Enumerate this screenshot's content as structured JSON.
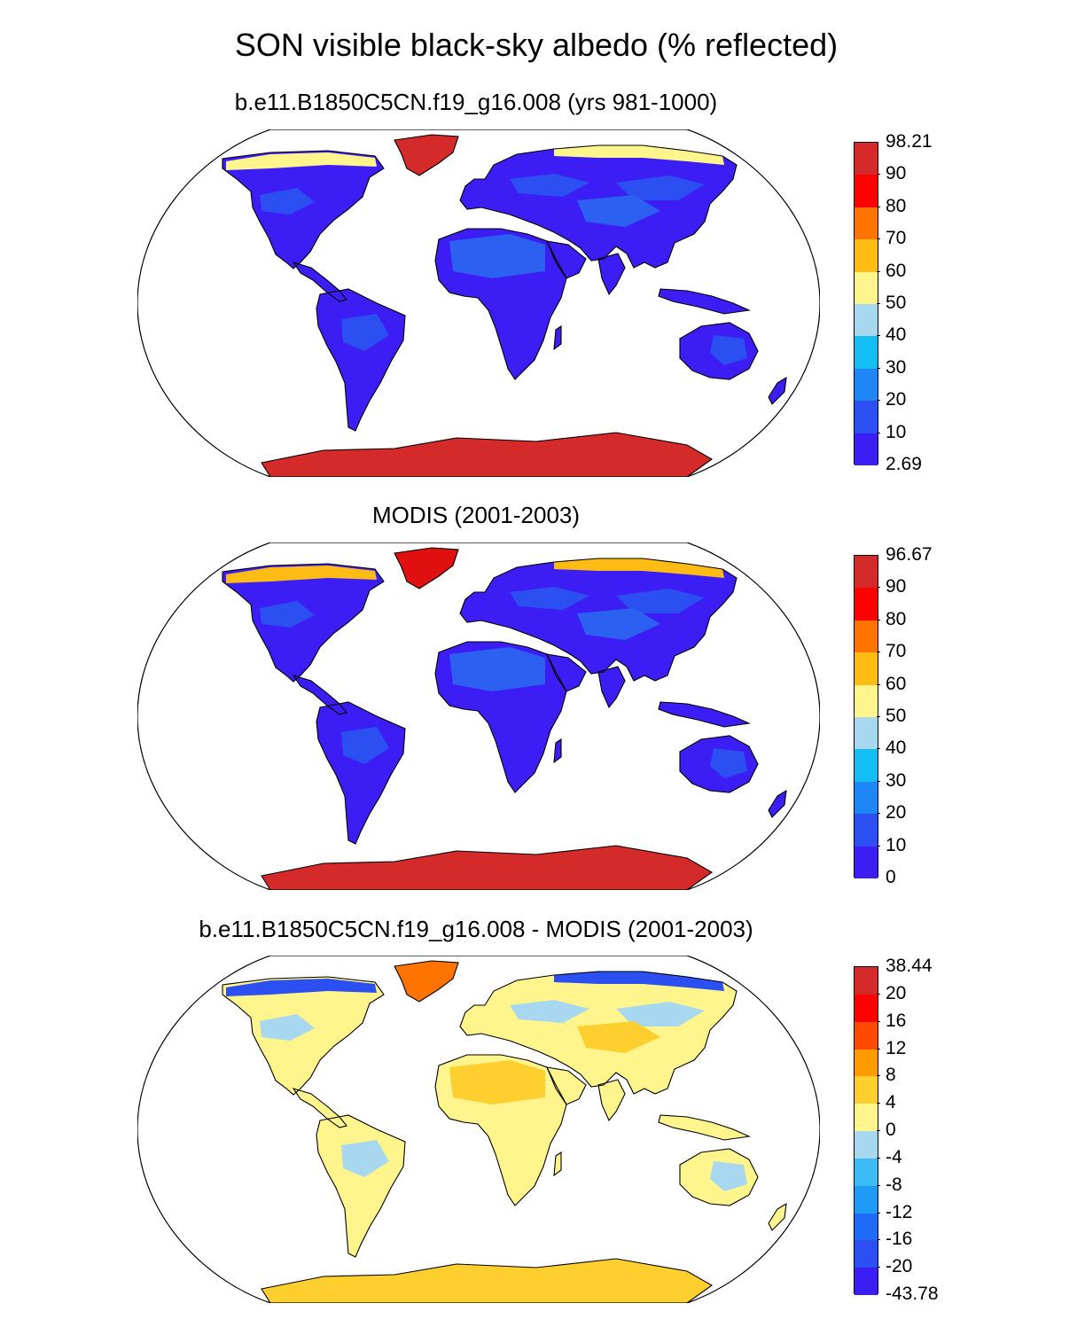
{
  "figure": {
    "title": "SON visible black-sky albedo (% reflected)"
  },
  "panels": [
    {
      "title": "b.e11.B1850C5CN.f19_g16.008 (yrs 981-1000)",
      "colorbar": {
        "labels": [
          "98.21",
          "90",
          "80",
          "70",
          "60",
          "50",
          "40",
          "30",
          "20",
          "10",
          "2.69"
        ],
        "colors": [
          "#d42a2a",
          "#ff0000",
          "#ff7300",
          "#ffbc14",
          "#fff58c",
          "#a8d7f0",
          "#14bef5",
          "#1e86f5",
          "#2b4ff0",
          "#3c1ef5"
        ]
      },
      "fill": {
        "land": "#3c1ef5",
        "land_variant": "#2b4ff0",
        "desert": "#2b60f0",
        "greenland": "#d42a2a",
        "antarctica": "#d42a2a",
        "arctic_rim": "#fff58c"
      }
    },
    {
      "title": "MODIS (2001-2003)",
      "colorbar": {
        "labels": [
          "96.67",
          "90",
          "80",
          "70",
          "60",
          "50",
          "40",
          "30",
          "20",
          "10",
          "0"
        ],
        "colors": [
          "#d42a2a",
          "#ff0000",
          "#ff7300",
          "#ffbc14",
          "#fff58c",
          "#a8d7f0",
          "#14bef5",
          "#1e86f5",
          "#2b4ff0",
          "#3c1ef5"
        ]
      },
      "fill": {
        "land": "#3c1ef5",
        "land_variant": "#2b4ff0",
        "desert": "#2b60f0",
        "greenland": "#e01010",
        "antarctica": "#d42a2a",
        "arctic_rim": "#ffbc14"
      }
    },
    {
      "title": "b.e11.B1850C5CN.f19_g16.008 - MODIS (2001-2003)",
      "colorbar": {
        "labels": [
          "38.44",
          "20",
          "16",
          "12",
          "8",
          "4",
          "0",
          "-4",
          "-8",
          "-12",
          "-16",
          "-20",
          "-43.78"
        ],
        "colors": [
          "#d42a2a",
          "#ff0000",
          "#ff4a00",
          "#ff9a00",
          "#ffcf30",
          "#fff58c",
          "#a8d7f0",
          "#3cbcf5",
          "#1e9cf5",
          "#1e6cf5",
          "#2b4ff0",
          "#3c1ef5"
        ]
      },
      "fill": {
        "land": "#fff58c",
        "land_variant": "#a8d7f0",
        "desert": "#ffcf30",
        "greenland": "#ff7300",
        "antarctica": "#ffcf30",
        "arctic_rim": "#2b4ff0"
      }
    }
  ]
}
